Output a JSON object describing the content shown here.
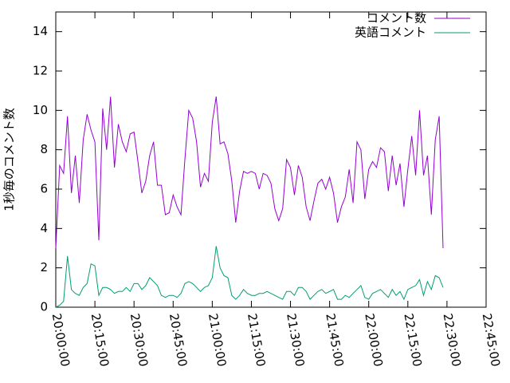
{
  "chart_data": {
    "type": "line",
    "y_label": "1秒毎のコメント数",
    "x": [
      "20:00:00",
      "20:01:30",
      "20:03:00",
      "20:04:30",
      "20:06:00",
      "20:07:30",
      "20:09:00",
      "20:10:30",
      "20:12:00",
      "20:13:30",
      "20:15:00",
      "20:16:30",
      "20:18:00",
      "20:19:30",
      "20:21:00",
      "20:22:30",
      "20:24:00",
      "20:25:30",
      "20:27:00",
      "20:28:30",
      "20:30:00",
      "20:31:30",
      "20:33:00",
      "20:34:30",
      "20:36:00",
      "20:37:30",
      "20:39:00",
      "20:40:30",
      "20:42:00",
      "20:43:30",
      "20:45:00",
      "20:46:30",
      "20:48:00",
      "20:49:30",
      "20:51:00",
      "20:52:30",
      "20:54:00",
      "20:55:30",
      "20:57:00",
      "20:58:30",
      "21:00:00",
      "21:01:30",
      "21:03:00",
      "21:04:30",
      "21:06:00",
      "21:07:30",
      "21:09:00",
      "21:10:30",
      "21:12:00",
      "21:13:30",
      "21:15:00",
      "21:16:30",
      "21:18:00",
      "21:19:30",
      "21:21:00",
      "21:22:30",
      "21:24:00",
      "21:25:30",
      "21:27:00",
      "21:28:30",
      "21:30:00",
      "21:31:30",
      "21:33:00",
      "21:34:30",
      "21:36:00",
      "21:37:30",
      "21:39:00",
      "21:40:30",
      "21:42:00",
      "21:43:30",
      "21:45:00",
      "21:46:30",
      "21:48:00",
      "21:49:30",
      "21:51:00",
      "21:52:30",
      "21:54:00",
      "21:55:30",
      "21:57:00",
      "21:58:30",
      "22:00:00",
      "22:01:30",
      "22:03:00",
      "22:04:30",
      "22:06:00",
      "22:07:30",
      "22:09:00",
      "22:10:30",
      "22:12:00",
      "22:13:30",
      "22:15:00",
      "22:16:30",
      "22:18:00",
      "22:19:30",
      "22:21:00",
      "22:22:30",
      "22:24:00",
      "22:25:30",
      "22:27:00",
      "22:28:30",
      "22:30:00"
    ],
    "series": [
      {
        "name": "コメント数",
        "color": "#9400d3",
        "values": [
          3.0,
          7.2,
          6.8,
          9.7,
          5.8,
          7.7,
          5.3,
          8.5,
          9.8,
          9.0,
          8.4,
          3.4,
          10.1,
          8.0,
          10.7,
          7.1,
          9.3,
          8.4,
          7.9,
          8.8,
          8.9,
          7.4,
          5.8,
          6.4,
          7.7,
          8.4,
          6.2,
          6.2,
          4.7,
          4.8,
          5.7,
          5.1,
          4.7,
          7.5,
          10.0,
          9.6,
          8.4,
          6.1,
          6.8,
          6.4,
          9.4,
          10.7,
          8.3,
          8.4,
          7.8,
          6.4,
          4.3,
          5.9,
          6.9,
          6.8,
          6.9,
          6.8,
          6.0,
          6.8,
          6.7,
          6.3,
          5.0,
          4.4,
          5.0,
          7.5,
          7.1,
          5.7,
          7.2,
          6.6,
          5.1,
          4.4,
          5.4,
          6.3,
          6.5,
          6.0,
          6.6,
          5.8,
          4.3,
          5.1,
          5.6,
          7.0,
          5.3,
          8.4,
          8.0,
          5.5,
          7.0,
          7.4,
          7.1,
          8.1,
          7.9,
          5.9,
          7.7,
          6.2,
          7.3,
          5.1,
          7.0,
          8.7,
          6.7,
          10.0,
          6.7,
          7.7,
          4.7,
          8.5,
          9.7,
          3.0,
          null
        ]
      },
      {
        "name": "英語コメント",
        "color": "#009e73",
        "values": [
          0.0,
          0.1,
          0.3,
          2.6,
          0.9,
          0.7,
          0.6,
          1.0,
          1.2,
          2.2,
          2.1,
          0.6,
          1.0,
          1.0,
          0.9,
          0.7,
          0.8,
          0.8,
          1.0,
          0.8,
          1.2,
          1.2,
          0.9,
          1.1,
          1.5,
          1.3,
          1.1,
          0.6,
          0.5,
          0.6,
          0.6,
          0.5,
          0.7,
          1.2,
          1.3,
          1.2,
          1.0,
          0.8,
          1.0,
          1.1,
          1.5,
          3.1,
          2.0,
          1.6,
          1.5,
          0.6,
          0.4,
          0.6,
          0.9,
          0.7,
          0.6,
          0.6,
          0.7,
          0.7,
          0.8,
          0.7,
          0.6,
          0.5,
          0.4,
          0.8,
          0.8,
          0.6,
          1.0,
          1.0,
          0.8,
          0.4,
          0.6,
          0.8,
          0.9,
          0.7,
          0.8,
          0.9,
          0.4,
          0.4,
          0.6,
          0.5,
          0.7,
          0.9,
          1.1,
          0.5,
          0.4,
          0.7,
          0.8,
          0.9,
          0.7,
          0.5,
          0.9,
          0.6,
          0.8,
          0.4,
          0.9,
          1.0,
          1.1,
          1.4,
          0.6,
          1.3,
          0.9,
          1.6,
          1.5,
          1.0,
          null
        ]
      }
    ],
    "xlim": [
      "20:00:00",
      "22:45:00"
    ],
    "xticks": [
      "20:00:00",
      "20:15:00",
      "20:30:00",
      "20:45:00",
      "21:00:00",
      "21:15:00",
      "21:30:00",
      "21:45:00",
      "22:00:00",
      "22:15:00",
      "22:30:00",
      "22:45:00"
    ],
    "ylim": [
      0,
      15
    ],
    "yticks": [
      0,
      2,
      4,
      6,
      8,
      10,
      12,
      14
    ],
    "legend": "top-right"
  }
}
